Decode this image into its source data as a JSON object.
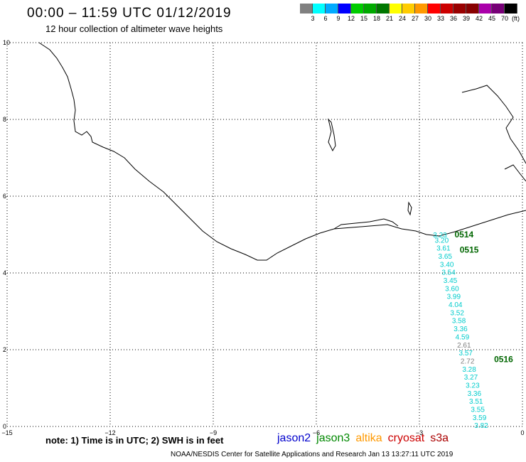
{
  "header": {
    "title": "00:00 – 11:59 UTC 01/12/2019",
    "subtitle": "12 hour collection of altimeter wave heights"
  },
  "colorbar": {
    "colors": [
      "#808080",
      "#00ffff",
      "#00aaff",
      "#0000ff",
      "#00cc00",
      "#00aa00",
      "#007700",
      "#ffff00",
      "#ffcc00",
      "#ff9900",
      "#ff0000",
      "#cc0000",
      "#990000",
      "#880000",
      "#aa00aa",
      "#770077",
      "#000000"
    ],
    "ticks": [
      "3",
      "6",
      "9",
      "12",
      "15",
      "18",
      "21",
      "24",
      "27",
      "30",
      "33",
      "36",
      "39",
      "42",
      "45",
      "70"
    ],
    "unit": "(ft)"
  },
  "axes": {
    "x_ticks": [
      {
        "v": -15,
        "label": "−15"
      },
      {
        "v": -12,
        "label": "−12"
      },
      {
        "v": -9,
        "label": "−9"
      },
      {
        "v": -6,
        "label": "−6"
      },
      {
        "v": -3,
        "label": "−3"
      },
      {
        "v": 0,
        "label": "0"
      }
    ],
    "y_ticks": [
      {
        "v": 0,
        "label": "0"
      },
      {
        "v": 2,
        "label": "2"
      },
      {
        "v": 4,
        "label": "4"
      },
      {
        "v": 6,
        "label": "6"
      },
      {
        "v": 8,
        "label": "8"
      },
      {
        "v": 10,
        "label": "10"
      }
    ],
    "xlim": [
      -15,
      0
    ],
    "ylim": [
      0,
      10
    ]
  },
  "track_points": [
    {
      "lon": -2.4,
      "lat": 4.93,
      "label": "3.23",
      "color": "#00cccc"
    },
    {
      "lon": -2.35,
      "lat": 4.79,
      "label": "3.20",
      "color": "#00cccc"
    },
    {
      "lon": -2.3,
      "lat": 4.58,
      "label": "3.61",
      "color": "#00cccc"
    },
    {
      "lon": -2.25,
      "lat": 4.37,
      "label": "3.65",
      "color": "#00cccc"
    },
    {
      "lon": -2.2,
      "lat": 4.16,
      "label": "3.40",
      "color": "#00cccc"
    },
    {
      "lon": -2.15,
      "lat": 3.95,
      "label": "3.54",
      "color": "#00cccc"
    },
    {
      "lon": -2.1,
      "lat": 3.74,
      "label": "3.45",
      "color": "#00cccc"
    },
    {
      "lon": -2.05,
      "lat": 3.53,
      "label": "3.60",
      "color": "#00cccc"
    },
    {
      "lon": -2.0,
      "lat": 3.32,
      "label": "3.99",
      "color": "#00cccc"
    },
    {
      "lon": -1.95,
      "lat": 3.11,
      "label": "4.04",
      "color": "#00cccc"
    },
    {
      "lon": -1.9,
      "lat": 2.9,
      "label": "3.52",
      "color": "#00cccc"
    },
    {
      "lon": -1.85,
      "lat": 2.69,
      "label": "3.58",
      "color": "#00cccc"
    },
    {
      "lon": -1.8,
      "lat": 2.48,
      "label": "3.36",
      "color": "#00cccc"
    },
    {
      "lon": -1.75,
      "lat": 2.27,
      "label": "4.59",
      "color": "#00cccc"
    },
    {
      "lon": -1.7,
      "lat": 2.06,
      "label": "2.61",
      "color": "#808080"
    },
    {
      "lon": -1.65,
      "lat": 1.85,
      "label": "3.57",
      "color": "#00cccc"
    },
    {
      "lon": -1.6,
      "lat": 1.64,
      "label": "2.72",
      "color": "#808080"
    },
    {
      "lon": -1.55,
      "lat": 1.43,
      "label": "3.28",
      "color": "#00cccc"
    },
    {
      "lon": -1.5,
      "lat": 1.22,
      "label": "3.27",
      "color": "#00cccc"
    },
    {
      "lon": -1.45,
      "lat": 1.01,
      "label": "3.23",
      "color": "#00cccc"
    },
    {
      "lon": -1.4,
      "lat": 0.8,
      "label": "3.36",
      "color": "#00cccc"
    },
    {
      "lon": -1.35,
      "lat": 0.59,
      "label": "3.51",
      "color": "#00cccc"
    },
    {
      "lon": -1.3,
      "lat": 0.38,
      "label": "3.55",
      "color": "#00cccc"
    },
    {
      "lon": -1.25,
      "lat": 0.17,
      "label": "3.59",
      "color": "#00cccc"
    },
    {
      "lon": -1.2,
      "lat": -0.04,
      "label": "3.82",
      "color": "#00cccc"
    }
  ],
  "time_labels": [
    {
      "lon": -1.7,
      "lat": 4.93,
      "label": "0514"
    },
    {
      "lon": -1.55,
      "lat": 4.53,
      "label": "0515"
    },
    {
      "lon": -0.55,
      "lat": 1.68,
      "label": "0516"
    }
  ],
  "note": "note:  1) Time is in UTC;  2) SWH is in feet",
  "legend": [
    {
      "label": "jason2",
      "color": "#0000cc"
    },
    {
      "label": "jason3",
      "color": "#008800"
    },
    {
      "label": "altika",
      "color": "#ff9900"
    },
    {
      "label": "cryosat",
      "color": "#cc0000"
    },
    {
      "label": "s3a",
      "color": "#aa0000"
    }
  ],
  "credit": "NOAA/NESDIS Center for Satellite Applications and Research    Jan 13 13:27:11 UTC 2019"
}
